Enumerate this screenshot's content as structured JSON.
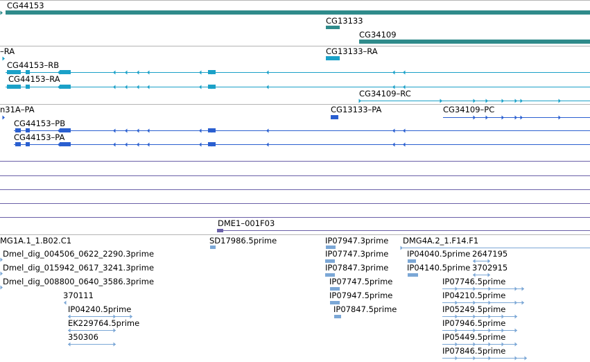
{
  "colors": {
    "gene": "#2f8b8b",
    "transcript": "#1ba1c8",
    "protein": "#2a5fd0",
    "misc": "#6a60a8",
    "clone": "#7ba7d6",
    "separator": "#b4b4b4"
  },
  "tracks": {
    "genes": {
      "labels": [
        "CG44153",
        "CG13133",
        "CG34109"
      ]
    },
    "transcripts": {
      "labels": [
        "–RA",
        "CG13133–RA",
        "CG44153–RB",
        "CG44153–RA",
        "CG34109–RC"
      ]
    },
    "proteins": {
      "labels": [
        "n31A–PA",
        "CG13133–PA",
        "CG34109–PC",
        "CG44153–PB",
        "CG44153–PA"
      ]
    },
    "misc": {
      "labels": [
        "DME1–001F03"
      ]
    },
    "clones": {
      "labels": [
        "MG1A.1_1.B02.C1",
        "SD17986.5prime",
        "IP07947.3prime",
        "DMG4A.2_1.F14.F1",
        "Dmel_dig_004506_0622_2290.3prime",
        "IP07747.3prime",
        "IP04040.5prime",
        "2647195",
        "Dmel_dig_015942_0617_3241.3prime",
        "IP07847.3prime",
        "IP04140.5prime",
        "3702915",
        "Dmel_dig_008800_0640_3586.3prime",
        "IP07747.5prime",
        "IP07746.5prime",
        "370111",
        "IP07947.5prime",
        "IP04210.5prime",
        "IP04240.5prime",
        "IP07847.5prime",
        "IP05249.5prime",
        "EK229764.5prime",
        "IP07946.5prime",
        "350306",
        "IP05449.5prime",
        "IP07846.5prime"
      ]
    }
  }
}
